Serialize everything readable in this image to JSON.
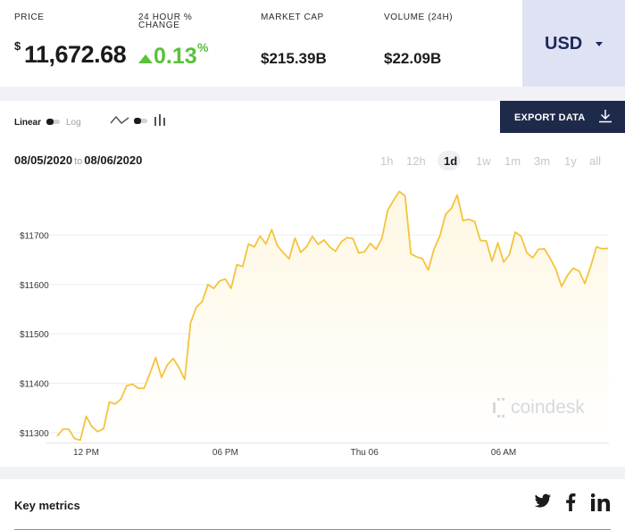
{
  "stats": {
    "price": {
      "label": "PRICE",
      "symbol": "$",
      "value": "11,672.68"
    },
    "change": {
      "label_line1": "24 HOUR %",
      "label_line2": "CHANGE",
      "value": "0.13",
      "unit": "%"
    },
    "market_cap": {
      "label": "MARKET CAP",
      "value": "$215.39B"
    },
    "volume": {
      "label": "VOLUME (24H)",
      "value": "$22.09B"
    },
    "currency": "USD"
  },
  "chart_controls": {
    "linear_label": "Linear",
    "log_label": "Log",
    "export_label": "EXPORT DATA",
    "date_from": "08/05/2020",
    "date_to_word": "to",
    "date_to": "08/06/2020",
    "ranges": [
      "1h",
      "12h",
      "1d",
      "1w",
      "1m",
      "3m",
      "1y",
      "all"
    ],
    "active_range": "1d",
    "brand": "coindesk"
  },
  "colors": {
    "line": "#f5c33b",
    "area": "#fef7e2",
    "positive": "#5ac13a",
    "export_bg": "#1e2a4a",
    "currency_bg": "#dfe2f3"
  },
  "chart_data": {
    "type": "area",
    "y_ticks": [
      "$11300",
      "$11400",
      "$11500",
      "$11600",
      "$11700"
    ],
    "y_tick_values": [
      11300,
      11400,
      11500,
      11600,
      11700
    ],
    "x_ticks": [
      "12 PM",
      "06 PM",
      "Thu 06",
      "06 AM"
    ],
    "x_tick_hours": [
      12,
      18,
      24,
      30
    ],
    "ylim": [
      11280,
      11800
    ],
    "xlim": [
      10.75,
      34.5
    ],
    "grid": "horizontal",
    "series": [
      {
        "x": [
          10.75,
          11,
          11.25,
          11.5,
          11.75,
          12,
          12.25,
          12.5,
          12.75,
          13,
          13.25,
          13.5,
          13.75,
          14,
          14.25,
          14.5,
          14.75,
          15,
          15.25,
          15.5,
          15.75,
          16,
          16.25,
          16.5,
          16.75,
          17,
          17.25,
          17.5,
          17.75,
          18,
          18.25,
          18.5,
          18.75,
          19,
          19.25,
          19.5,
          19.75,
          20,
          20.25,
          20.5,
          20.75,
          21,
          21.25,
          21.5,
          21.75,
          22,
          22.25,
          22.5,
          22.75,
          23,
          23.25,
          23.5,
          23.75,
          24,
          24.25,
          24.5,
          24.75,
          25,
          25.25,
          25.5,
          25.75,
          26,
          26.25,
          26.5,
          26.75,
          27,
          27.25,
          27.5,
          27.75,
          28,
          28.25,
          28.5,
          28.75,
          29,
          29.25,
          29.5,
          29.75,
          30,
          30.25,
          30.5,
          30.75,
          31,
          31.25,
          31.5,
          31.75,
          32,
          32.25,
          32.5,
          32.75,
          33,
          33.25,
          33.5,
          33.75,
          34,
          34.25,
          34.5
        ],
        "values": [
          11293,
          11307,
          11307,
          11288,
          11285,
          11333,
          11312,
          11302,
          11308,
          11362,
          11358,
          11368,
          11395,
          11398,
          11390,
          11390,
          11420,
          11452,
          11412,
          11437,
          11450,
          11432,
          11408,
          11522,
          11554,
          11565,
          11600,
          11592,
          11607,
          11611,
          11592,
          11640,
          11636,
          11682,
          11676,
          11698,
          11682,
          11711,
          11678,
          11664,
          11652,
          11694,
          11665,
          11676,
          11697,
          11681,
          11690,
          11676,
          11667,
          11686,
          11695,
          11693,
          11664,
          11666,
          11683,
          11671,
          11693,
          11750,
          11770,
          11788,
          11779,
          11662,
          11656,
          11652,
          11629,
          11672,
          11698,
          11742,
          11754,
          11781,
          11729,
          11732,
          11727,
          11689,
          11688,
          11647,
          11684,
          11645,
          11661,
          11706,
          11697,
          11664,
          11654,
          11671,
          11672,
          11653,
          11631,
          11596,
          11618,
          11633,
          11627,
          11602,
          11636,
          11676,
          11672,
          11673
        ]
      }
    ]
  },
  "metrics": {
    "title": "Key metrics",
    "twitter": "twitter-icon",
    "facebook": "facebook-icon",
    "linkedin": "linkedin-icon"
  }
}
